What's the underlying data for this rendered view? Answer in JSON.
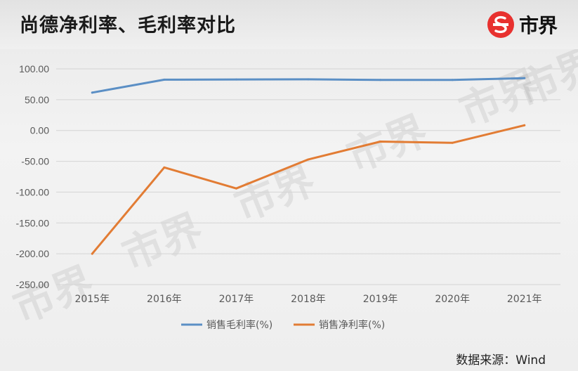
{
  "header": {
    "title": "尚德净利率、毛利率对比",
    "brand": "市界",
    "brand_icon": "s-logo-icon",
    "brand_color": "#e8312f"
  },
  "watermark": "市界",
  "source": "数据来源：Wind",
  "colors": {
    "gross_margin": "#5b8fc5",
    "net_margin": "#e27c34",
    "grid": "#d4d4d4"
  },
  "chart_data": {
    "type": "line",
    "categories": [
      "2015年",
      "2016年",
      "2017年",
      "2018年",
      "2019年",
      "2020年",
      "2021年"
    ],
    "series": [
      {
        "name": "销售毛利率(%)",
        "values": [
          61.5,
          82.5,
          82.8,
          83.0,
          82.0,
          82.0,
          85.0
        ]
      },
      {
        "name": "销售净利率(%)",
        "values": [
          -200.0,
          -60.0,
          -94.0,
          -47.0,
          -18.0,
          -20.0,
          8.5
        ]
      }
    ],
    "y_ticks": [
      "100.00",
      "50.00",
      "0.00",
      "-50.00",
      "-100.00",
      "-150.00",
      "-200.00",
      "-250.00"
    ],
    "ylim": [
      -250,
      100
    ],
    "grid": true,
    "legend": "bottom"
  }
}
